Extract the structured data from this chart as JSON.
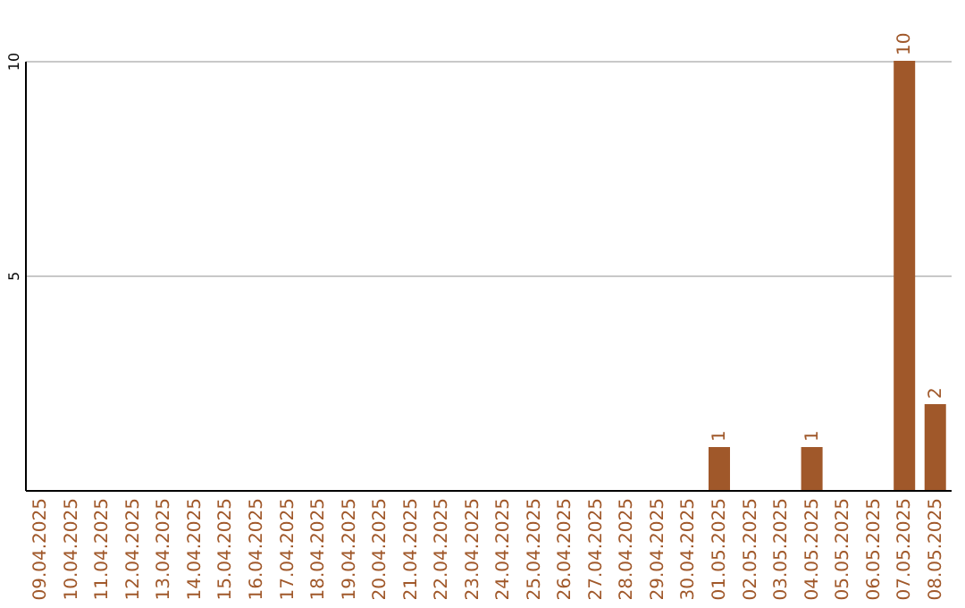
{
  "chart_data": {
    "type": "bar",
    "categories": [
      "09.04.2025",
      "10.04.2025",
      "11.04.2025",
      "12.04.2025",
      "13.04.2025",
      "14.04.2025",
      "15.04.2025",
      "16.04.2025",
      "17.04.2025",
      "18.04.2025",
      "19.04.2025",
      "20.04.2025",
      "21.04.2025",
      "22.04.2025",
      "23.04.2025",
      "24.04.2025",
      "25.04.2025",
      "26.04.2025",
      "27.04.2025",
      "28.04.2025",
      "29.04.2025",
      "30.04.2025",
      "01.05.2025",
      "02.05.2025",
      "03.05.2025",
      "04.05.2025",
      "05.05.2025",
      "06.05.2025",
      "07.05.2025",
      "08.05.2025"
    ],
    "values": [
      0,
      0,
      0,
      0,
      0,
      0,
      0,
      0,
      0,
      0,
      0,
      0,
      0,
      0,
      0,
      0,
      0,
      0,
      0,
      0,
      0,
      0,
      1,
      0,
      0,
      1,
      0,
      0,
      10,
      2
    ],
    "value_labels": [
      null,
      null,
      null,
      null,
      null,
      null,
      null,
      null,
      null,
      null,
      null,
      null,
      null,
      null,
      null,
      null,
      null,
      null,
      null,
      null,
      null,
      null,
      "1",
      null,
      null,
      "1",
      null,
      null,
      "10",
      "2"
    ],
    "color": "#a0582a",
    "ylim": [
      0,
      10
    ],
    "yticks": [
      5,
      10
    ],
    "grid": "y"
  }
}
